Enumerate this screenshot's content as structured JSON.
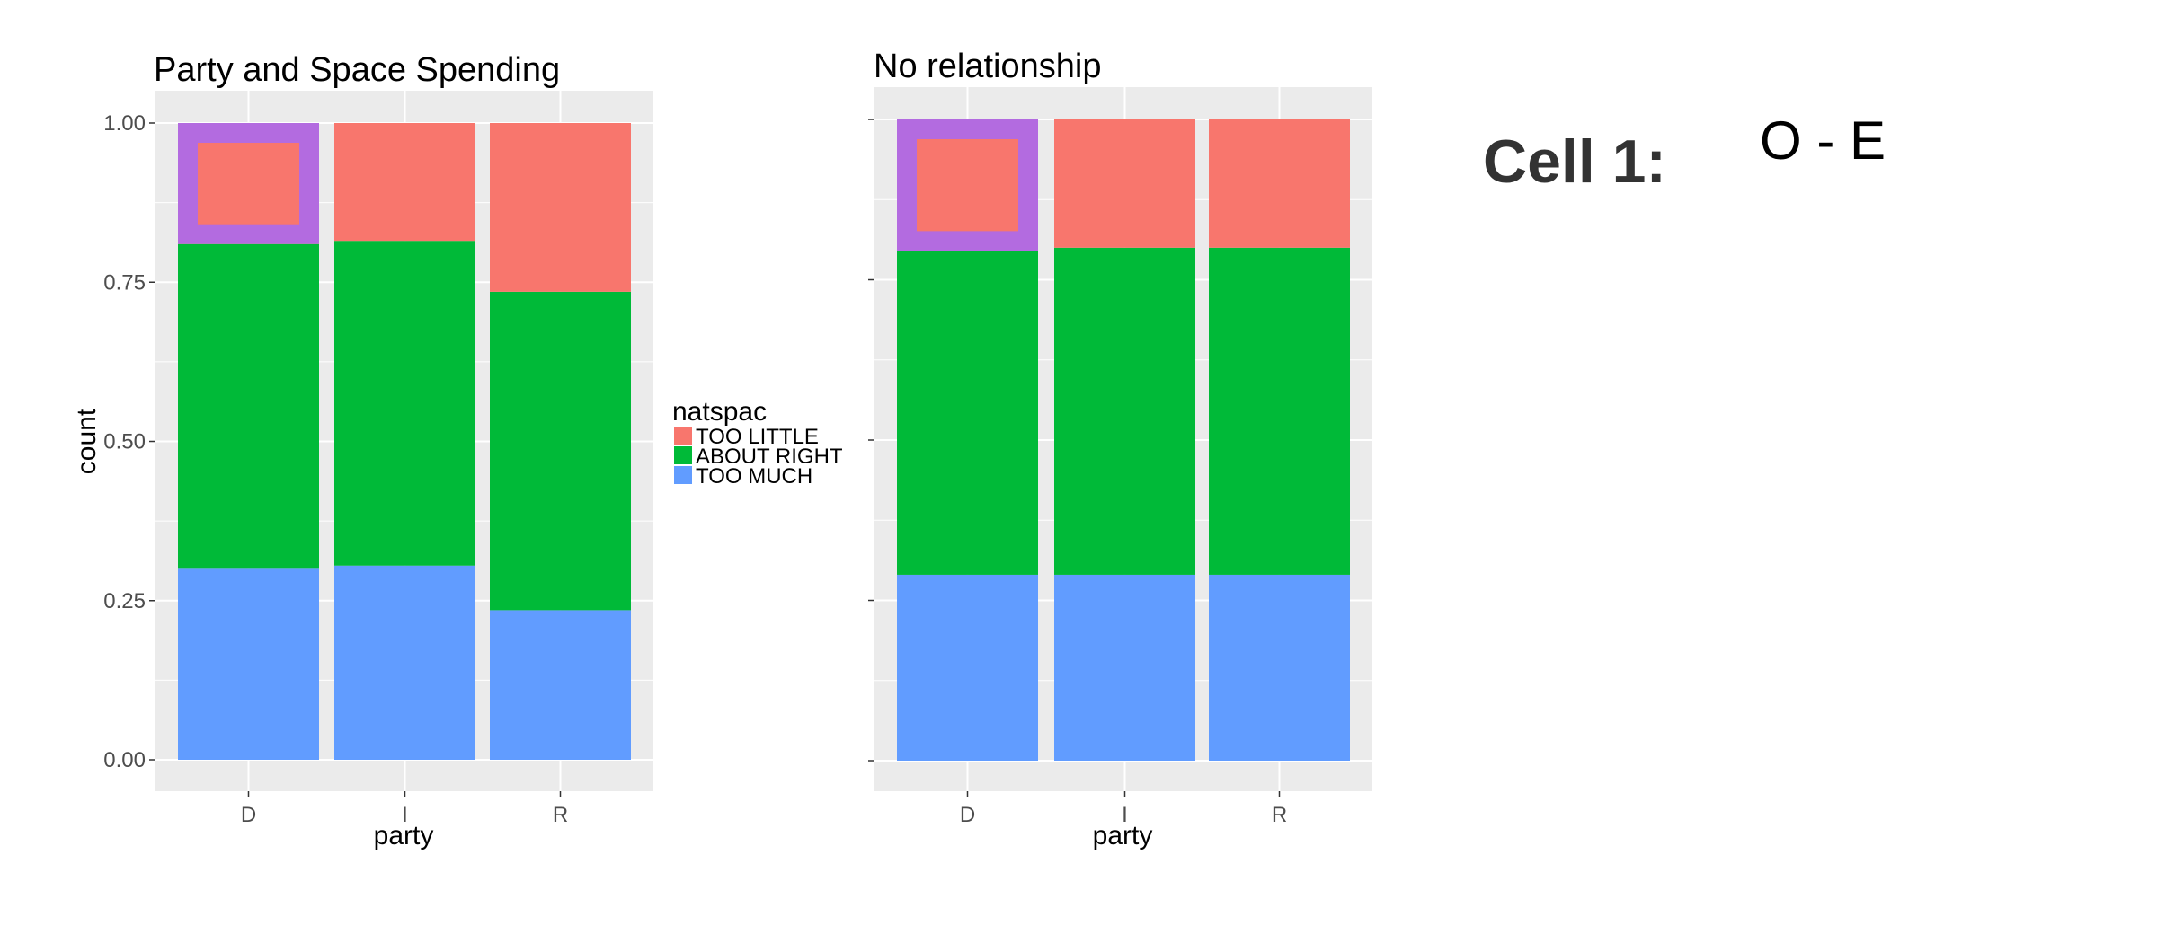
{
  "chart_data": [
    {
      "type": "bar",
      "stacked": true,
      "title": "Party and Space Spending",
      "xlabel": "party",
      "ylabel": "count",
      "categories": [
        "D",
        "I",
        "R"
      ],
      "ylim": [
        0,
        1
      ],
      "yticks": [
        "0.00",
        "0.25",
        "0.50",
        "0.75",
        "1.00"
      ],
      "series": [
        {
          "name": "TOO MUCH",
          "values": [
            0.3,
            0.305,
            0.235
          ]
        },
        {
          "name": "ABOUT RIGHT",
          "values": [
            0.51,
            0.51,
            0.5
          ]
        },
        {
          "name": "TOO LITTLE",
          "values": [
            0.19,
            0.185,
            0.265
          ]
        }
      ],
      "highlight": {
        "category": "D",
        "series": "TOO LITTLE",
        "color": "#b36be0"
      }
    },
    {
      "type": "bar",
      "stacked": true,
      "title": "No relationship",
      "xlabel": "party",
      "ylabel": "",
      "categories": [
        "D",
        "I",
        "R"
      ],
      "ylim": [
        0,
        1
      ],
      "series": [
        {
          "name": "TOO MUCH",
          "values": [
            0.29,
            0.29,
            0.29
          ]
        },
        {
          "name": "ABOUT RIGHT",
          "values": [
            0.505,
            0.51,
            0.51
          ]
        },
        {
          "name": "TOO LITTLE",
          "values": [
            0.205,
            0.2,
            0.2
          ]
        }
      ],
      "highlight": {
        "category": "D",
        "series": "TOO LITTLE",
        "color": "#b36be0"
      }
    }
  ],
  "legend": {
    "title": "natspac",
    "entries": [
      {
        "label": "TOO LITTLE",
        "color": "#f8766d"
      },
      {
        "label": "ABOUT RIGHT",
        "color": "#00ba38"
      },
      {
        "label": "TOO MUCH",
        "color": "#619cff"
      }
    ]
  },
  "colors": {
    "TOO LITTLE": "#f8766d",
    "ABOUT RIGHT": "#00ba38",
    "TOO MUCH": "#619cff",
    "panel": "#ebebeb",
    "grid": "#ffffff"
  },
  "annotation": {
    "cell_label": "Cell 1:",
    "formula": "O - E"
  }
}
